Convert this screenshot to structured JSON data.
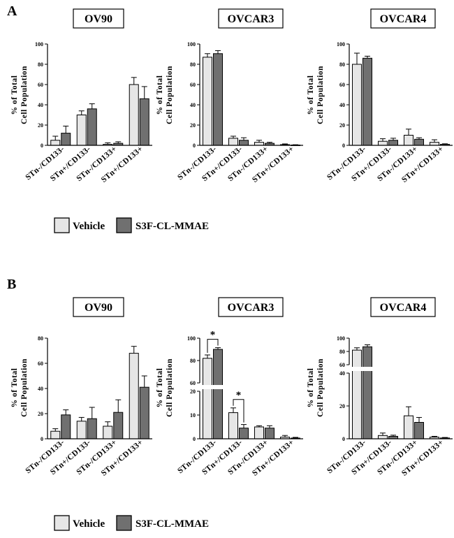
{
  "series_names": [
    "Vehicle",
    "S3F-CL-MMAE"
  ],
  "colors": {
    "vehicle": "#e6e6e6",
    "treated": "#707070",
    "stroke": "#000000",
    "background": "#ffffff"
  },
  "panels": [
    {
      "letter": "A",
      "legend": {
        "vehicle_label": "Vehicle",
        "treated_label": "S3F-CL-MMAE"
      }
    },
    {
      "letter": "B",
      "legend": {
        "vehicle_label": "Vehicle",
        "treated_label": "S3F-CL-MMAE"
      }
    }
  ],
  "chart_data": [
    {
      "panel": "A",
      "type": "bar",
      "title": "OV90",
      "ylabel": "% of Total\nCell Population",
      "categories": [
        "STn-/CD133-",
        "STn+/CD133-",
        "STn-/CD133+",
        "STn+/CD133+"
      ],
      "ylim": [
        0,
        100
      ],
      "yticks": [
        0,
        20,
        40,
        60,
        80,
        100
      ],
      "series": [
        {
          "name": "Vehicle",
          "values": [
            5,
            30,
            1,
            60
          ],
          "errors": [
            4,
            4,
            1.5,
            7
          ]
        },
        {
          "name": "S3F-CL-MMAE",
          "values": [
            12,
            36,
            2,
            46
          ],
          "errors": [
            7,
            5,
            1.5,
            12
          ]
        }
      ]
    },
    {
      "panel": "A",
      "type": "bar",
      "title": "OVCAR3",
      "ylabel": "% of Total\nCell Population",
      "categories": [
        "STn-/CD133-",
        "STn+/CD133-",
        "STn-/CD133+",
        "STn+/CD133+"
      ],
      "ylim": [
        0,
        100
      ],
      "yticks": [
        0,
        20,
        40,
        60,
        80,
        100
      ],
      "series": [
        {
          "name": "Vehicle",
          "values": [
            87,
            7,
            3,
            0.7
          ],
          "errors": [
            3.5,
            2,
            2,
            0.7
          ]
        },
        {
          "name": "S3F-CL-MMAE",
          "values": [
            90.5,
            5,
            2,
            0.3
          ],
          "errors": [
            3,
            2.5,
            1,
            0.3
          ]
        }
      ]
    },
    {
      "panel": "A",
      "type": "bar",
      "title": "OVCAR4",
      "ylabel": "% of Total\nCell Population",
      "categories": [
        "STn-/CD133-",
        "STn+/CD133-",
        "STn-/CD133+",
        "STn+/CD133+"
      ],
      "ylim": [
        0,
        100
      ],
      "yticks": [
        0,
        20,
        40,
        60,
        80,
        100
      ],
      "series": [
        {
          "name": "Vehicle",
          "values": [
            80,
            4,
            10,
            3
          ],
          "errors": [
            11,
            2.5,
            6,
            2.5
          ]
        },
        {
          "name": "S3F-CL-MMAE",
          "values": [
            86,
            5,
            6,
            1
          ],
          "errors": [
            2,
            2,
            1.5,
            0.5
          ]
        }
      ]
    },
    {
      "panel": "B",
      "type": "bar",
      "title": "OV90",
      "ylabel": "% of Total\nCell Population",
      "categories": [
        "STn-/CD133-",
        "STn+/CD133-",
        "STn-/CD133+",
        "STn+/CD133+"
      ],
      "ylim": [
        0,
        80
      ],
      "yticks": [
        0,
        20,
        40,
        60,
        80
      ],
      "series": [
        {
          "name": "Vehicle",
          "values": [
            6,
            14,
            10,
            68
          ],
          "errors": [
            2,
            3,
            3.5,
            5.5
          ]
        },
        {
          "name": "S3F-CL-MMAE",
          "values": [
            19,
            16,
            21,
            41
          ],
          "errors": [
            4,
            9,
            10,
            9
          ]
        }
      ]
    },
    {
      "panel": "B",
      "type": "bar",
      "title": "OVCAR3",
      "ylabel": "% of Total\nCell Population",
      "categories": [
        "STn-/CD133-",
        "STn+/CD133-",
        "STn-/CD133+",
        "STn+/CD133+"
      ],
      "y_break": {
        "lower_range": [
          0,
          20
        ],
        "upper_range": [
          60,
          100
        ]
      },
      "lower_ticks": [
        0,
        10,
        20
      ],
      "upper_ticks": [
        60,
        80,
        100
      ],
      "significance": [
        "*",
        "*"
      ],
      "series": [
        {
          "name": "Vehicle",
          "values": [
            82,
            11,
            5,
            0.7
          ],
          "errors": [
            3,
            2,
            0.5,
            0.7
          ]
        },
        {
          "name": "S3F-CL-MMAE",
          "values": [
            90,
            4.5,
            4.5,
            0.3
          ],
          "errors": [
            1.5,
            1.5,
            1,
            0.3
          ]
        }
      ]
    },
    {
      "panel": "B",
      "type": "bar",
      "title": "OVCAR4",
      "ylabel": "% of Total\nCell Population",
      "categories": [
        "STn-/CD133-",
        "STn+/CD133-",
        "STn-/CD133+",
        "STn+/CD133+"
      ],
      "y_break": {
        "lower_range": [
          0,
          40
        ],
        "upper_range": [
          60,
          100
        ]
      },
      "lower_ticks": [
        0,
        20,
        40
      ],
      "upper_ticks": [
        60,
        80,
        100
      ],
      "series": [
        {
          "name": "Vehicle",
          "values": [
            82,
            2,
            14,
            1
          ],
          "errors": [
            3.5,
            1.5,
            5.5,
            0.5
          ]
        },
        {
          "name": "S3F-CL-MMAE",
          "values": [
            87,
            1.5,
            10,
            0.5
          ],
          "errors": [
            3,
            0.7,
            3,
            0.3
          ]
        }
      ]
    }
  ]
}
